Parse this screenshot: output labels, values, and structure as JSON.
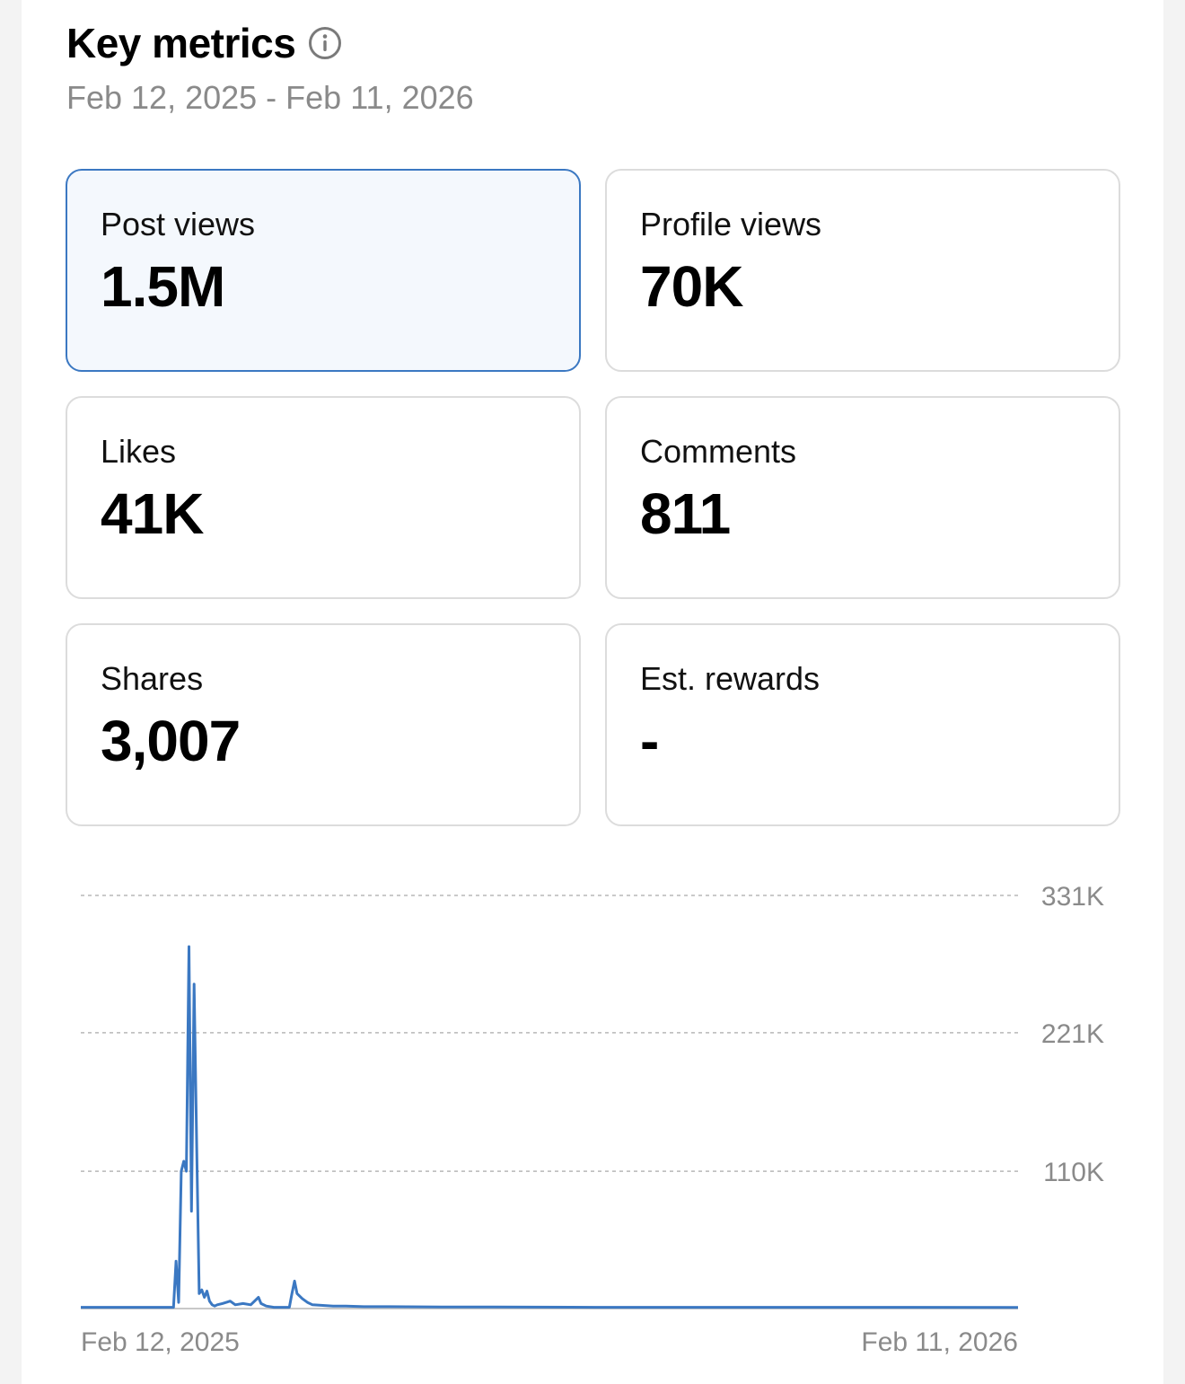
{
  "header": {
    "title": "Key metrics",
    "info_icon": "info-circle-icon",
    "date_range": "Feb 12, 2025 - Feb 11, 2026"
  },
  "metrics": [
    {
      "label": "Post views",
      "value": "1.5M",
      "selected": true
    },
    {
      "label": "Profile views",
      "value": "70K",
      "selected": false
    },
    {
      "label": "Likes",
      "value": "41K",
      "selected": false
    },
    {
      "label": "Comments",
      "value": "811",
      "selected": false
    },
    {
      "label": "Shares",
      "value": "3,007",
      "selected": false
    },
    {
      "label": "Est. rewards",
      "value": "-",
      "selected": false
    }
  ],
  "colors": {
    "accent": "#3b78c2",
    "selected_bg": "#f4f8fd",
    "muted_text": "#8a8a8a",
    "card_border": "#dcdcdc"
  },
  "chart_data": {
    "type": "line",
    "series_name": "",
    "x_start_label": "Feb 12, 2025",
    "x_end_label": "Feb 11, 2026",
    "y_ticks": [
      {
        "value": 110000,
        "label": "110K"
      },
      {
        "value": 221000,
        "label": "221K"
      },
      {
        "value": 331000,
        "label": "331K"
      }
    ],
    "ylim": [
      0,
      331000
    ],
    "grid": "dashed horizontal",
    "x": [
      0,
      36,
      37,
      38,
      39,
      40,
      41,
      42,
      43,
      44,
      45,
      46,
      47,
      48,
      49,
      50,
      51,
      52,
      53,
      55,
      58,
      60,
      63,
      66,
      69,
      70,
      72,
      75,
      78,
      81,
      82,
      83,
      84,
      86,
      88,
      90,
      94,
      98,
      103,
      110,
      120,
      140,
      160,
      200,
      260,
      300,
      364
    ],
    "values": [
      1000,
      1000,
      38000,
      5000,
      110000,
      118000,
      110000,
      290000,
      78000,
      260000,
      130000,
      12000,
      15000,
      9000,
      14000,
      6000,
      3000,
      2000,
      3000,
      4000,
      6000,
      3000,
      4000,
      3000,
      9000,
      4000,
      2000,
      1000,
      1000,
      1000,
      12000,
      22000,
      12000,
      8000,
      5000,
      3000,
      2500,
      2000,
      2000,
      1500,
      1500,
      1200,
      1200,
      1000,
      1000,
      1000,
      900
    ]
  }
}
